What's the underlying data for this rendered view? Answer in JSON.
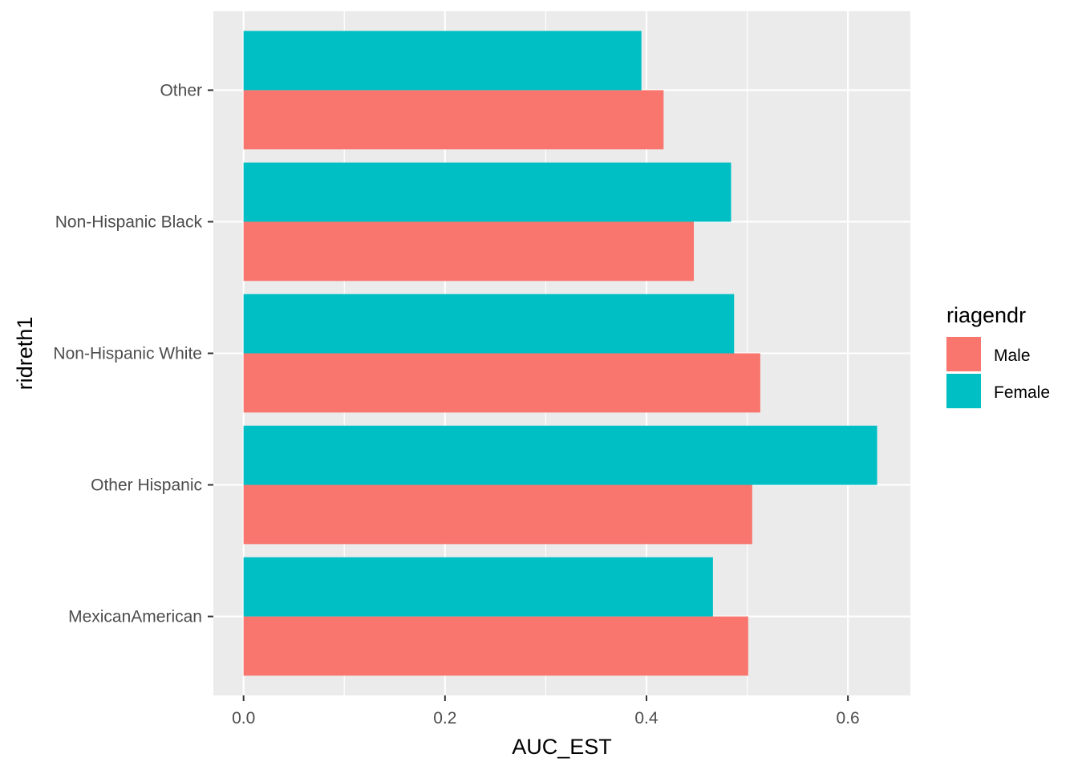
{
  "chart_data": {
    "type": "bar",
    "orientation": "horizontal",
    "categories": [
      "MexicanAmerican",
      "Other Hispanic",
      "Non-Hispanic White",
      "Non-Hispanic Black",
      "Other"
    ],
    "series": [
      {
        "name": "Male",
        "color": "#F8766D",
        "values": [
          0.501,
          0.505,
          0.513,
          0.447,
          0.417
        ]
      },
      {
        "name": "Female",
        "color": "#00BFC4",
        "values": [
          0.466,
          0.629,
          0.487,
          0.484,
          0.395
        ]
      }
    ],
    "xlabel": "AUC_EST",
    "ylabel": "ridreth1",
    "xlim": [
      -0.03,
      0.662
    ],
    "xticks": [
      0.0,
      0.2,
      0.4,
      0.6
    ],
    "xtick_labels": [
      "0.0",
      "0.2",
      "0.4",
      "0.6"
    ],
    "grid": true,
    "panel_background": "#EBEBEB",
    "legend": {
      "title": "riagendr",
      "position": "right",
      "labels": [
        "Male",
        "Female"
      ]
    }
  }
}
